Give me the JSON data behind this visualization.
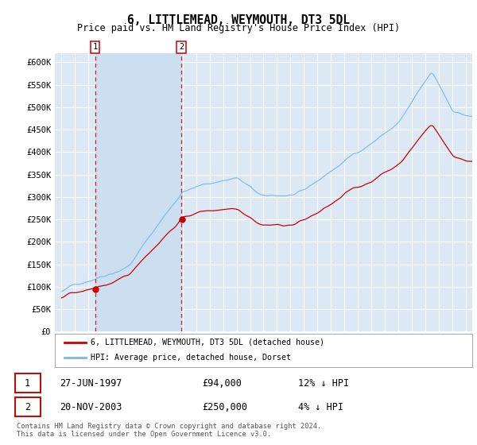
{
  "title": "6, LITTLEMEAD, WEYMOUTH, DT3 5DL",
  "subtitle": "Price paid vs. HM Land Registry's House Price Index (HPI)",
  "ylim": [
    0,
    620000
  ],
  "yticks": [
    0,
    50000,
    100000,
    150000,
    200000,
    250000,
    300000,
    350000,
    400000,
    450000,
    500000,
    550000,
    600000
  ],
  "ytick_labels": [
    "£0",
    "£50K",
    "£100K",
    "£150K",
    "£200K",
    "£250K",
    "£300K",
    "£350K",
    "£400K",
    "£450K",
    "£500K",
    "£550K",
    "£600K"
  ],
  "plot_bg_color": "#dce9f5",
  "highlight_bg_color": "#ccdff0",
  "grid_color": "#ffffff",
  "line_color_hpi": "#7ab8e8",
  "line_color_paid": "#cc0000",
  "sale1_year": 1997.49,
  "sale1_price": 94000,
  "sale2_year": 2003.9,
  "sale2_price": 250000,
  "legend_entry1": "6, LITTLEMEAD, WEYMOUTH, DT3 5DL (detached house)",
  "legend_entry2": "HPI: Average price, detached house, Dorset",
  "table_row1": [
    "1",
    "27-JUN-1997",
    "£94,000",
    "12% ↓ HPI"
  ],
  "table_row2": [
    "2",
    "20-NOV-2003",
    "£250,000",
    "4% ↓ HPI"
  ],
  "footer": "Contains HM Land Registry data © Crown copyright and database right 2024.\nThis data is licensed under the Open Government Licence v3.0."
}
